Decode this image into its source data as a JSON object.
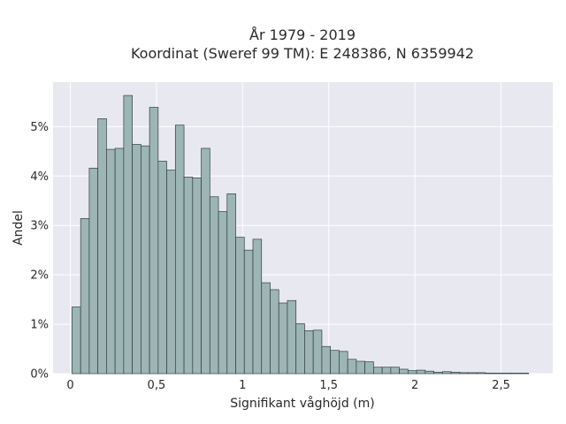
{
  "chart_data": {
    "type": "bar",
    "title_lines": [
      "År 1979 - 2019",
      "Koordinat (Sweref 99 TM): E 248386, N 6359942"
    ],
    "xlabel": "Signifikant våghöjd (m)",
    "ylabel": "Andel",
    "xlim": [
      -0.1,
      2.8
    ],
    "ylim": [
      0,
      0.059
    ],
    "xticks": [
      0,
      0.5,
      1,
      1.5,
      2,
      2.5
    ],
    "xtick_labels": [
      "0",
      "0,5",
      "1",
      "1,5",
      "2",
      "2,5"
    ],
    "yticks": [
      0,
      0.01,
      0.02,
      0.03,
      0.04,
      0.05
    ],
    "ytick_labels": [
      "0%",
      "1%",
      "2%",
      "3%",
      "4%",
      "5%"
    ],
    "grid": true,
    "legend": "none",
    "bin_width": 0.05,
    "bin_starts": [
      0.01,
      0.06,
      0.11,
      0.16,
      0.21,
      0.26,
      0.31,
      0.36,
      0.41,
      0.46,
      0.51,
      0.56,
      0.61,
      0.66,
      0.71,
      0.76,
      0.81,
      0.86,
      0.91,
      0.96,
      1.01,
      1.06,
      1.11,
      1.16,
      1.21,
      1.26,
      1.31,
      1.36,
      1.41,
      1.46,
      1.51,
      1.56,
      1.61,
      1.66,
      1.71,
      1.76,
      1.81,
      1.86,
      1.91,
      1.96,
      2.01,
      2.06,
      2.11,
      2.16,
      2.21,
      2.26,
      2.31,
      2.36,
      2.41,
      2.46,
      2.51,
      2.56,
      2.61
    ],
    "values": [
      0.0135,
      0.0314,
      0.0416,
      0.0516,
      0.0454,
      0.0456,
      0.0563,
      0.0464,
      0.0461,
      0.0539,
      0.043,
      0.0412,
      0.0503,
      0.0398,
      0.0396,
      0.0456,
      0.0358,
      0.0328,
      0.0364,
      0.0276,
      0.025,
      0.0272,
      0.0184,
      0.017,
      0.0143,
      0.0148,
      0.0101,
      0.0087,
      0.0088,
      0.0055,
      0.0047,
      0.0045,
      0.0029,
      0.0025,
      0.0024,
      0.0013,
      0.0013,
      0.0013,
      0.0009,
      0.0006,
      0.0007,
      0.0005,
      0.0003,
      0.0004,
      0.0003,
      0.0002,
      0.0002,
      0.0002,
      0.0001,
      0.0001,
      0.0001,
      0.0001,
      0.0001
    ],
    "colors": {
      "bar_fill": "#9db5b5",
      "bar_stroke": "#2f3f3f",
      "plot_bg": "#e8e8f0",
      "grid": "#ffffff",
      "text": "#2a2a2a"
    }
  }
}
